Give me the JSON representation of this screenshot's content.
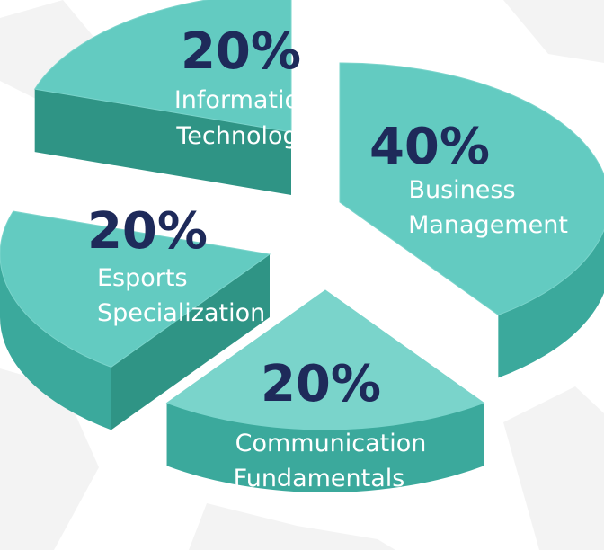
{
  "chart_data": {
    "type": "pie",
    "title": "",
    "slices": [
      {
        "pct_label": "40%",
        "value": 40,
        "label_lines": [
          "Business",
          "Management"
        ]
      },
      {
        "pct_label": "20%",
        "value": 20,
        "label_lines": [
          "Communication",
          "Fundamentals"
        ]
      },
      {
        "pct_label": "20%",
        "value": 20,
        "label_lines": [
          "Esports",
          "Specialization"
        ]
      },
      {
        "pct_label": "20%",
        "value": 20,
        "label_lines": [
          "Information",
          "Technology"
        ]
      }
    ],
    "colors": {
      "top": "#63cbc1",
      "top_light": "#7ad4cb",
      "side": "#3ba99c",
      "side_dark": "#2f9485",
      "percent_text": "#1e2a5a",
      "label_text": "#ffffff",
      "background": "#ffffff",
      "map_bg": "#ececec"
    }
  }
}
